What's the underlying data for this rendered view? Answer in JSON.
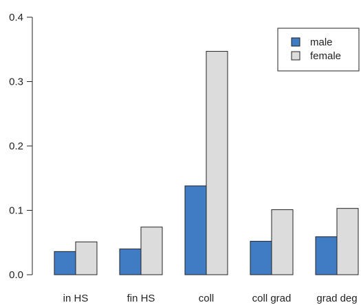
{
  "chart_data": {
    "type": "bar",
    "categories": [
      "in HS",
      "fin HS",
      "coll",
      "coll grad",
      "grad deg"
    ],
    "series": [
      {
        "name": "male",
        "values": [
          0.036,
          0.04,
          0.138,
          0.052,
          0.059
        ],
        "color": "#3f7cc4"
      },
      {
        "name": "female",
        "values": [
          0.051,
          0.074,
          0.347,
          0.101,
          0.103
        ],
        "color": "#dcdcdc"
      }
    ],
    "ylim": [
      0,
      0.4
    ],
    "yticks": [
      "0.0",
      "0.1",
      "0.2",
      "0.3",
      "0.4"
    ],
    "grid": false,
    "legend_position": "top-right",
    "bar_edge_color": "#222222"
  }
}
